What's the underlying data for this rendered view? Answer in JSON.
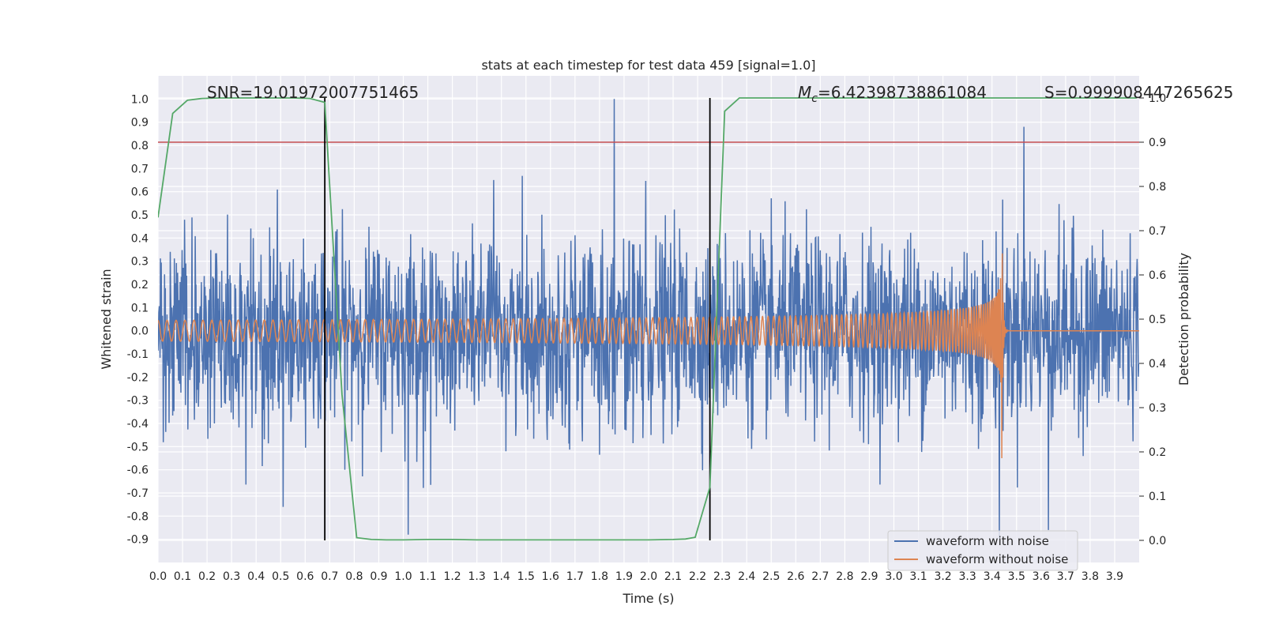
{
  "chart_data": {
    "type": "line",
    "title": "stats at each timestep for test data 459 [signal=1.0]",
    "xlabel": "Time (s)",
    "ylabel": "Whitened strain",
    "y2label": "Detection probability",
    "xlim": [
      0.0,
      4.0
    ],
    "ylim": [
      -1.0,
      1.1
    ],
    "y2lim": [
      -0.05,
      1.05
    ],
    "x_ticks": [
      "0.0",
      "0.1",
      "0.2",
      "0.3",
      "0.4",
      "0.5",
      "0.6",
      "0.7",
      "0.8",
      "0.9",
      "1.0",
      "1.1",
      "1.2",
      "1.3",
      "1.4",
      "1.5",
      "1.6",
      "1.7",
      "1.8",
      "1.9",
      "2.0",
      "2.1",
      "2.2",
      "2.3",
      "2.4",
      "2.5",
      "2.6",
      "2.7",
      "2.8",
      "2.9",
      "3.0",
      "3.1",
      "3.2",
      "3.3",
      "3.4",
      "3.5",
      "3.6",
      "3.7",
      "3.8",
      "3.9"
    ],
    "y_ticks": [
      "1.0",
      "0.9",
      "0.8",
      "0.7",
      "0.6",
      "0.5",
      "0.4",
      "0.3",
      "0.2",
      "0.1",
      "0.0",
      "-0.1",
      "-0.2",
      "-0.3",
      "-0.4",
      "-0.5",
      "-0.6",
      "-0.7",
      "-0.8",
      "-0.9"
    ],
    "y2_ticks": [
      "1.0",
      "0.9",
      "0.8",
      "0.7",
      "0.6",
      "0.5",
      "0.4",
      "0.3",
      "0.2",
      "0.1",
      "0.0"
    ],
    "grid": true,
    "annotations": {
      "snr": "SNR=19.01972007751465",
      "mc_symbol": "M",
      "mc_sub": "c",
      "mc_value": "=6.42398738861084",
      "s": "S=0.999908447265625"
    },
    "threshold": {
      "y2": 0.9,
      "color": "#c44e52"
    },
    "vlines": [
      0.68,
      2.25
    ],
    "series": [
      {
        "name": "waveform with noise",
        "color": "#4c72b0",
        "generator": "noise",
        "amplitude_std": 0.2,
        "peaks": [
          [
            1.86,
            1.0
          ],
          [
            3.53,
            0.88
          ],
          [
            1.02,
            -0.88
          ],
          [
            3.43,
            -0.9
          ],
          [
            3.63,
            -0.86
          ],
          [
            0.51,
            -0.76
          ]
        ]
      },
      {
        "name": "waveform without noise",
        "color": "#dd8452",
        "generator": "chirp",
        "merger_time": 3.44,
        "amplitude_start": 0.045,
        "amplitude_peak": 0.38,
        "amplitude_min": -0.55
      },
      {
        "name": "detection probability",
        "color": "#55a868",
        "axis": "y2",
        "x": [
          0.0,
          0.06,
          0.12,
          0.18,
          0.25,
          0.35,
          0.45,
          0.55,
          0.62,
          0.68,
          0.75,
          0.81,
          0.87,
          0.93,
          1.0,
          1.1,
          1.2,
          1.3,
          1.4,
          1.5,
          1.6,
          1.7,
          1.8,
          1.9,
          2.0,
          2.1,
          2.15,
          2.19,
          2.25,
          2.31,
          2.37,
          2.45,
          2.6,
          2.8,
          3.0,
          3.2,
          3.4,
          3.6,
          3.8,
          3.99
        ],
        "y": [
          0.73,
          0.965,
          0.995,
          0.999,
          1.0,
          1.0,
          1.0,
          1.0,
          0.999,
          0.99,
          0.33,
          0.006,
          0.002,
          0.001,
          0.001,
          0.002,
          0.002,
          0.001,
          0.001,
          0.001,
          0.001,
          0.001,
          0.001,
          0.001,
          0.001,
          0.002,
          0.003,
          0.007,
          0.12,
          0.97,
          1.0,
          1.0,
          1.0,
          1.0,
          1.0,
          1.0,
          1.0,
          1.0,
          1.0,
          1.0
        ]
      }
    ]
  }
}
